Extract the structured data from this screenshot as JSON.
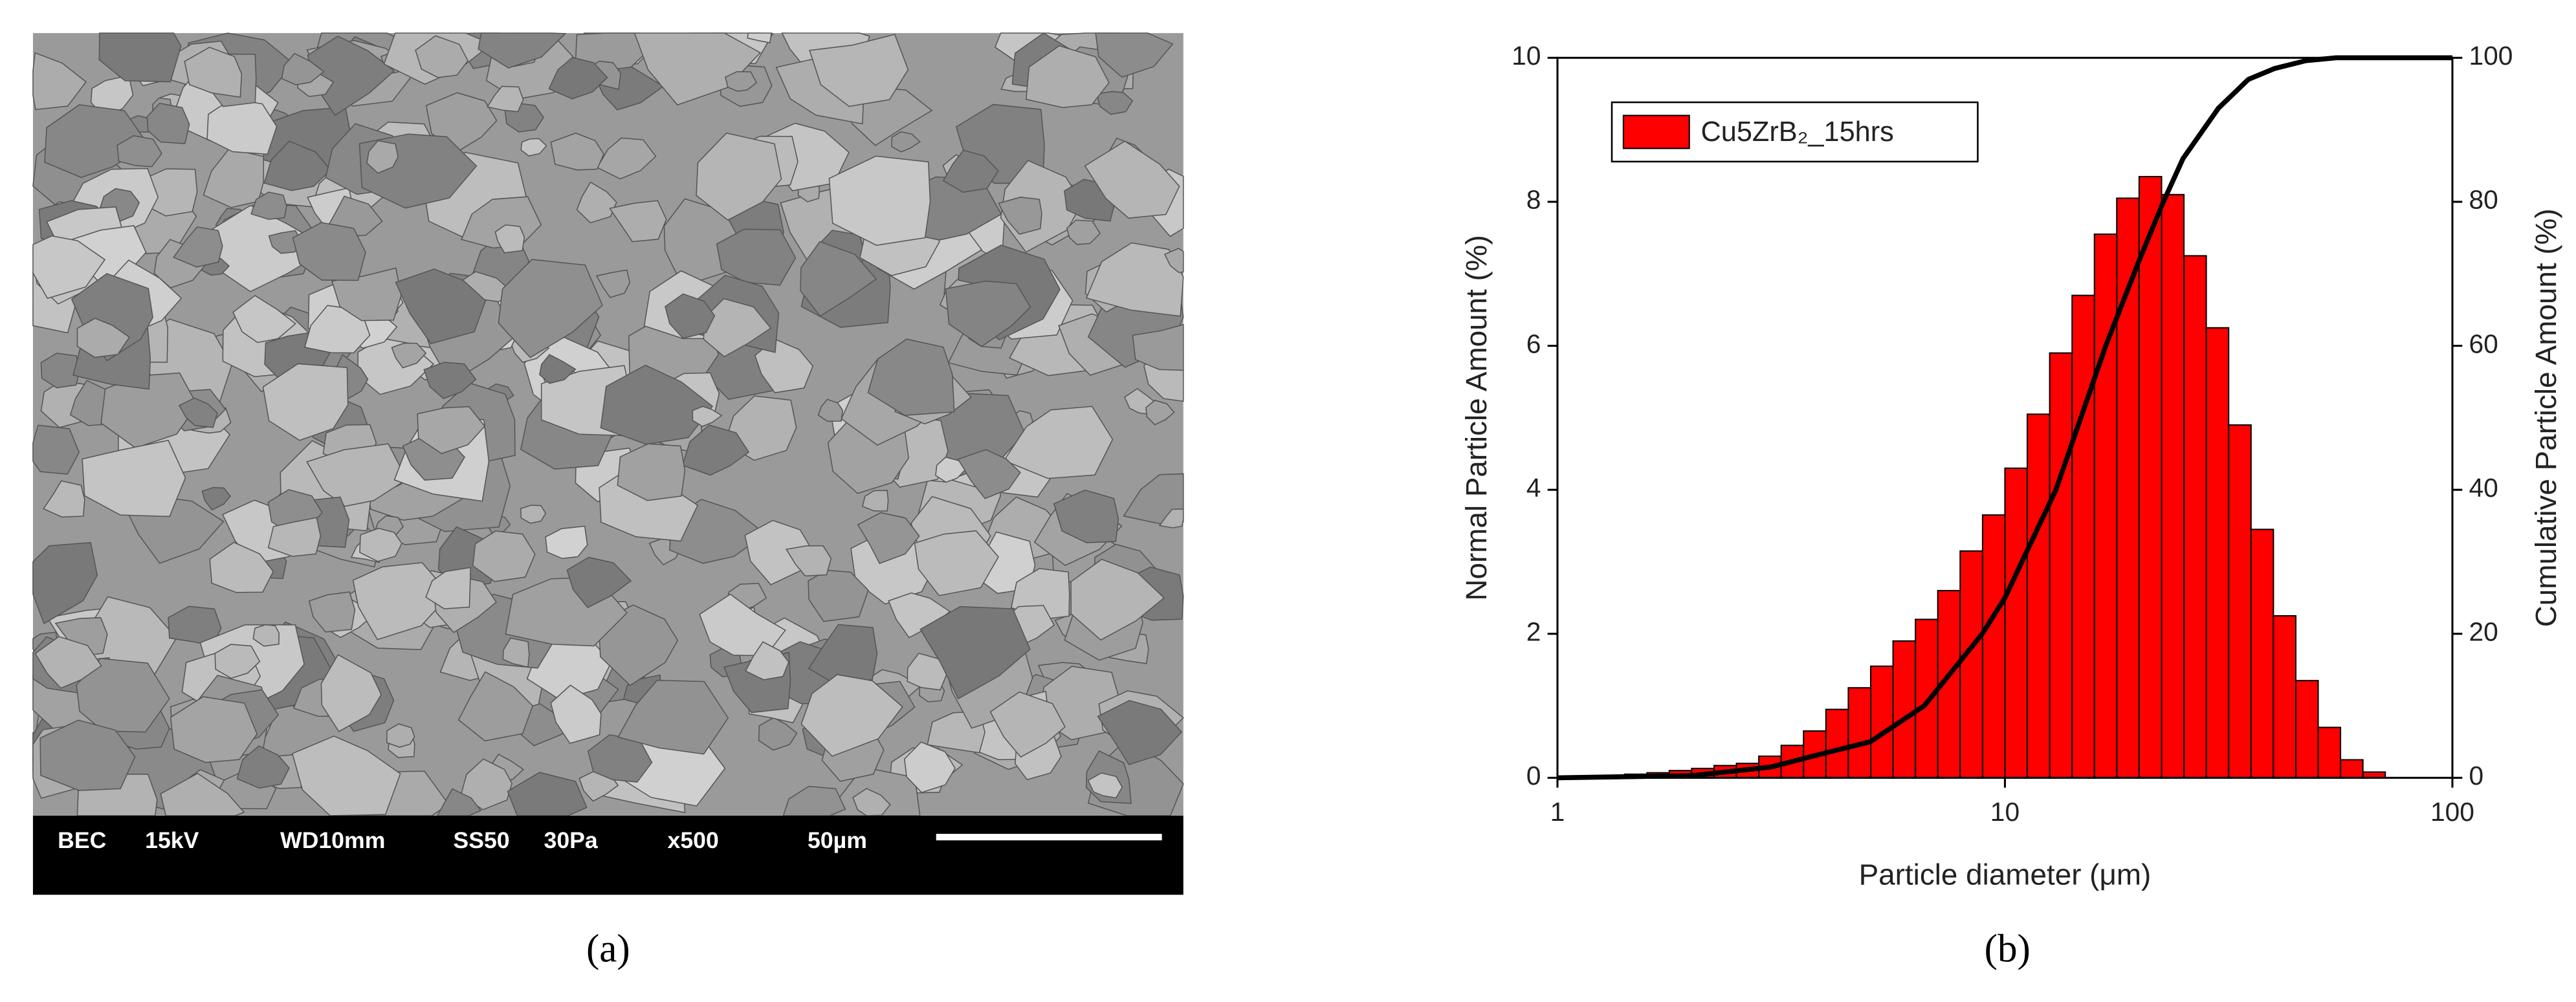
{
  "sem": {
    "info": [
      "BEC",
      "15kV",
      "WD10mm",
      "SS50",
      "30Pa",
      "x500",
      "50µm"
    ],
    "caption": "(a)"
  },
  "chart_data": {
    "type": "histogram",
    "caption": "(b)",
    "xlabel": "Particle diameter (μm)",
    "ylabel": "Normal Particle Amount (%)",
    "y2label": "Cumulative Particle Amount (%)",
    "xscale": "log",
    "xlim": [
      1,
      100
    ],
    "xticks": [
      1,
      10,
      100
    ],
    "ylim": [
      0,
      10
    ],
    "yticks": [
      0,
      2,
      4,
      6,
      8,
      10
    ],
    "y2lim": [
      0,
      100
    ],
    "y2ticks": [
      0,
      20,
      40,
      60,
      80,
      100
    ],
    "legend": "top-left",
    "bins": [
      1,
      1.122,
      1.259,
      1.413,
      1.585,
      1.778,
      1.995,
      2.239,
      2.512,
      2.818,
      3.162,
      3.548,
      3.981,
      4.467,
      5.012,
      5.623,
      6.31,
      7.079,
      7.943,
      8.913,
      10,
      11.22,
      12.59,
      14.13,
      15.85,
      17.78,
      19.95,
      22.39,
      25.12,
      28.18,
      31.62,
      35.48,
      39.81,
      44.67,
      50.12,
      56.23,
      63.1,
      70.79
    ],
    "series": [
      {
        "name": "Cu5ZrB₂_15hrs",
        "color": "#ff0000",
        "values": [
          0.01,
          0.02,
          0.03,
          0.05,
          0.07,
          0.1,
          0.13,
          0.17,
          0.2,
          0.3,
          0.45,
          0.65,
          0.95,
          1.25,
          1.55,
          1.9,
          2.2,
          2.6,
          3.15,
          3.65,
          4.3,
          5.05,
          5.9,
          6.7,
          7.55,
          8.05,
          8.35,
          8.1,
          7.25,
          6.25,
          4.9,
          3.45,
          2.25,
          1.35,
          0.7,
          0.25,
          0.08
        ]
      }
    ],
    "line": {
      "axis": "y2",
      "color": "#000000",
      "x": [
        1,
        2,
        3,
        4,
        5,
        6.6,
        8.9,
        10,
        13,
        16.8,
        20,
        22.6,
        25,
        30,
        35,
        40,
        47,
        55,
        70,
        100
      ],
      "values": [
        0,
        0.3,
        1.5,
        3.5,
        5,
        10,
        20,
        25,
        40,
        60,
        72,
        80,
        86,
        93,
        97,
        98.5,
        99.6,
        100,
        100,
        100
      ]
    }
  }
}
